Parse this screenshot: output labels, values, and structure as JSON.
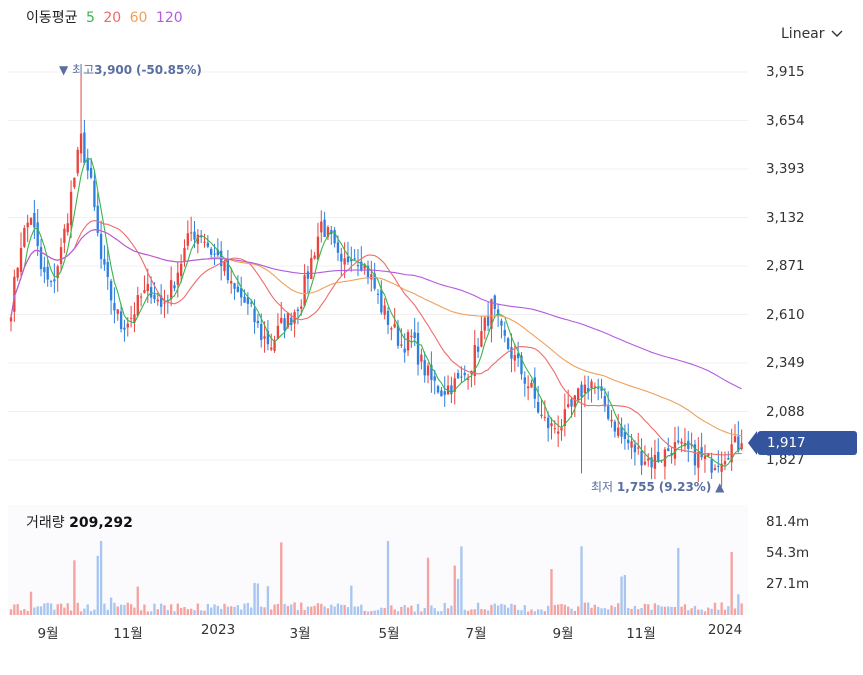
{
  "legend": {
    "label": "이동평균",
    "ma5": "5",
    "ma20": "20",
    "ma60": "60",
    "ma120": "120"
  },
  "colors": {
    "up": "#e8433f",
    "down": "#2d7fe0",
    "ma5": "#3bb54a",
    "ma20": "#f06a6a",
    "ma60": "#f0a05a",
    "ma120": "#b45be0",
    "badge": "#34549e",
    "annotation": "#5a6fa0"
  },
  "scale": {
    "label": "Linear",
    "icon": "chevron-down-icon"
  },
  "annotations": {
    "high": {
      "marker": "▼",
      "label": "최고",
      "value": "3,900",
      "pct": "(-50.85%)"
    },
    "low": {
      "label": "최저",
      "value": "1,755",
      "pct": "(9.23%)",
      "marker": "▲"
    }
  },
  "current_price": "1,917",
  "volume": {
    "label": "거래량",
    "value": "209,292"
  },
  "chart_data": {
    "type": "candlestick",
    "y_ticks": [
      "3,915",
      "3,654",
      "3,393",
      "3,132",
      "2,871",
      "2,610",
      "2,349",
      "2,088",
      "1,827"
    ],
    "y_tick_values": [
      3915,
      3654,
      3393,
      3132,
      2871,
      2610,
      2349,
      2088,
      1827
    ],
    "volume_ticks": [
      "81.4m",
      "54.3m",
      "27.1m"
    ],
    "volume_tick_values": [
      81.4,
      54.3,
      27.1
    ],
    "x_ticks": [
      "9월",
      "11월",
      "2023",
      "3월",
      "5월",
      "7월",
      "9월",
      "11월",
      "2024"
    ],
    "x_range": [
      "2022-08",
      "2024-01"
    ],
    "high": 3900,
    "low": 1755,
    "last": 1917,
    "volume_last": 209292,
    "close_anchors": [
      [
        0,
        2650
      ],
      [
        3,
        3000
      ],
      [
        6,
        3150
      ],
      [
        9,
        2850
      ],
      [
        12,
        2750
      ],
      [
        15,
        2950
      ],
      [
        18,
        3250
      ],
      [
        21,
        3550
      ],
      [
        24,
        3300
      ],
      [
        27,
        2900
      ],
      [
        30,
        2700
      ],
      [
        33,
        2550
      ],
      [
        36,
        2600
      ],
      [
        39,
        2700
      ],
      [
        42,
        2750
      ],
      [
        45,
        2650
      ],
      [
        48,
        2750
      ],
      [
        51,
        2900
      ],
      [
        54,
        3050
      ],
      [
        57,
        3050
      ],
      [
        60,
        2950
      ],
      [
        63,
        2900
      ],
      [
        66,
        2750
      ],
      [
        69,
        2700
      ],
      [
        72,
        2620
      ],
      [
        75,
        2500
      ],
      [
        78,
        2450
      ],
      [
        81,
        2550
      ],
      [
        84,
        2600
      ],
      [
        87,
        2700
      ],
      [
        90,
        2900
      ],
      [
        93,
        3100
      ],
      [
        96,
        3000
      ],
      [
        99,
        2850
      ],
      [
        102,
        2950
      ],
      [
        105,
        2900
      ],
      [
        108,
        2800
      ],
      [
        111,
        2650
      ],
      [
        114,
        2550
      ],
      [
        117,
        2450
      ],
      [
        120,
        2480
      ],
      [
        123,
        2350
      ],
      [
        126,
        2250
      ],
      [
        129,
        2200
      ],
      [
        132,
        2230
      ],
      [
        135,
        2250
      ],
      [
        138,
        2350
      ],
      [
        141,
        2500
      ],
      [
        144,
        2650
      ],
      [
        147,
        2500
      ],
      [
        150,
        2400
      ],
      [
        153,
        2300
      ],
      [
        156,
        2200
      ],
      [
        159,
        2050
      ],
      [
        162,
        2000
      ],
      [
        165,
        2020
      ],
      [
        168,
        2100
      ],
      [
        171,
        2200
      ],
      [
        174,
        2250
      ],
      [
        177,
        2150
      ],
      [
        180,
        2050
      ],
      [
        183,
        1950
      ],
      [
        186,
        1900
      ],
      [
        189,
        1850
      ],
      [
        192,
        1820
      ],
      [
        195,
        1850
      ],
      [
        198,
        1900
      ],
      [
        201,
        1880
      ],
      [
        204,
        1860
      ],
      [
        207,
        1830
      ],
      [
        210,
        1810
      ],
      [
        213,
        1850
      ],
      [
        216,
        1900
      ],
      [
        219,
        1917
      ]
    ]
  }
}
